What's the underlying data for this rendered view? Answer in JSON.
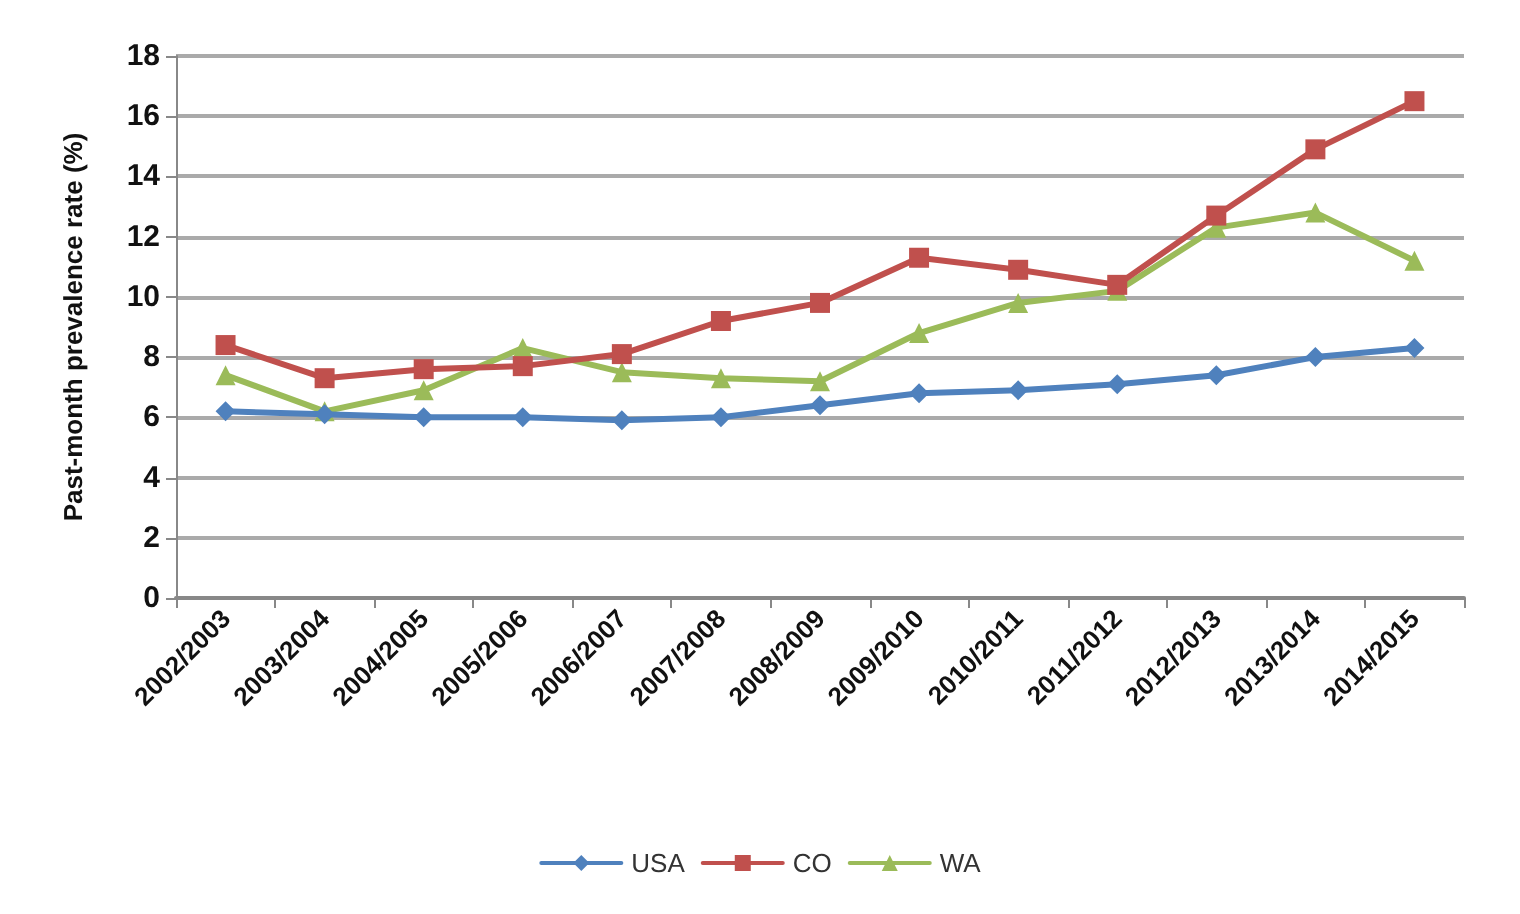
{
  "chart_data": {
    "type": "line",
    "ylabel": "Past-month prevalence rate (%)",
    "categories": [
      "2002/2003",
      "2003/2004",
      "2004/2005",
      "2005/2006",
      "2006/2007",
      "2007/2008",
      "2008/2009",
      "2009/2010",
      "2010/2011",
      "2011/2012",
      "2012/2013",
      "2013/2014",
      "2014/2015"
    ],
    "series": [
      {
        "name": "USA",
        "color": "#4f81bd",
        "marker": "diamond",
        "values": [
          6.2,
          6.1,
          6.0,
          6.0,
          5.9,
          6.0,
          6.4,
          6.8,
          6.9,
          7.1,
          7.4,
          8.0,
          8.3
        ]
      },
      {
        "name": "CO",
        "color": "#c0504d",
        "marker": "square",
        "values": [
          8.4,
          7.3,
          7.6,
          7.7,
          8.1,
          9.2,
          9.8,
          11.3,
          10.9,
          10.4,
          12.7,
          14.9,
          16.5
        ]
      },
      {
        "name": "WA",
        "color": "#9bbb59",
        "marker": "triangle",
        "values": [
          7.4,
          6.2,
          6.9,
          8.3,
          7.5,
          7.3,
          7.2,
          8.8,
          9.8,
          10.2,
          12.3,
          12.8,
          11.2
        ]
      }
    ],
    "ylim": [
      0,
      18
    ],
    "yticks": [
      0,
      2,
      4,
      6,
      8,
      10,
      12,
      14,
      16,
      18
    ],
    "grid": "y",
    "legend": "bottom",
    "line_style": "solid"
  }
}
